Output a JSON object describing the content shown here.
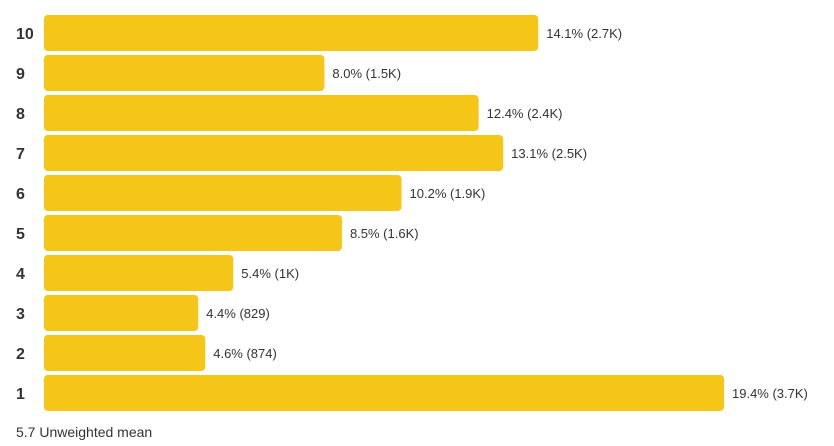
{
  "chart_data": {
    "type": "bar",
    "orientation": "horizontal",
    "categories": [
      "10",
      "9",
      "8",
      "7",
      "6",
      "5",
      "4",
      "3",
      "2",
      "1"
    ],
    "values": [
      14.1,
      8.0,
      12.4,
      13.1,
      10.2,
      8.5,
      5.4,
      4.4,
      4.6,
      19.4
    ],
    "value_labels": [
      "14.1% (2.7K)",
      "8.0% (1.5K)",
      "12.4% (2.4K)",
      "13.1% (2.5K)",
      "10.2% (1.9K)",
      "8.5% (1.6K)",
      "5.4% (1K)",
      "4.4% (829)",
      "4.6% (874)",
      "19.4% (3.7K)"
    ],
    "unit": "%",
    "xlim": [
      0,
      19.4
    ],
    "grid": false,
    "bar_color": "#F5C518"
  },
  "footer": {
    "text": "5.7 Unweighted mean"
  }
}
